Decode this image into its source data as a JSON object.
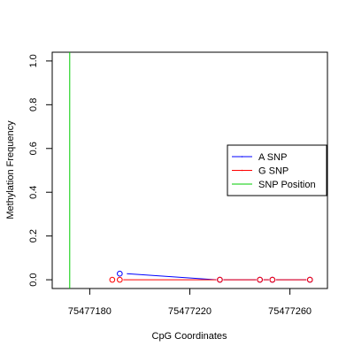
{
  "chart_data": {
    "type": "line",
    "title": "",
    "xlabel": "CpG Coordinates",
    "ylabel": "Methylation Frequency",
    "xlim": [
      75477165,
      75477275
    ],
    "ylim": [
      -0.04,
      1.04
    ],
    "x_ticks": [
      75477180,
      75477220,
      75477260
    ],
    "x_tick_labels": [
      "75477180",
      "75477220",
      "75477260"
    ],
    "y_ticks": [
      0.0,
      0.2,
      0.4,
      0.6,
      0.8,
      1.0
    ],
    "y_tick_labels": [
      "0.0",
      "0.2",
      "0.4",
      "0.6",
      "0.8",
      "1.0"
    ],
    "grid": false,
    "legend_position": "right",
    "snp_position": 75477172,
    "series": [
      {
        "name": "A SNP",
        "color": "#0000ff",
        "points": [
          {
            "x": 75477192,
            "y": 0.028
          },
          {
            "x": 75477232,
            "y": 0.0
          },
          {
            "x": 75477248,
            "y": 0.0
          },
          {
            "x": 75477253,
            "y": 0.0
          },
          {
            "x": 75477268,
            "y": 0.0
          }
        ]
      },
      {
        "name": "G SNP",
        "color": "#ff0000",
        "points": [
          {
            "x": 75477189,
            "y": 0.0
          },
          {
            "x": 75477192,
            "y": 0.0
          },
          {
            "x": 75477232,
            "y": 0.0
          },
          {
            "x": 75477248,
            "y": 0.0
          },
          {
            "x": 75477253,
            "y": 0.0
          },
          {
            "x": 75477268,
            "y": 0.0
          }
        ]
      }
    ],
    "legend": [
      {
        "label": "A SNP",
        "color": "#0000ff"
      },
      {
        "label": "G SNP",
        "color": "#ff0000"
      },
      {
        "label": "SNP Position",
        "color": "#00cc00"
      }
    ]
  }
}
